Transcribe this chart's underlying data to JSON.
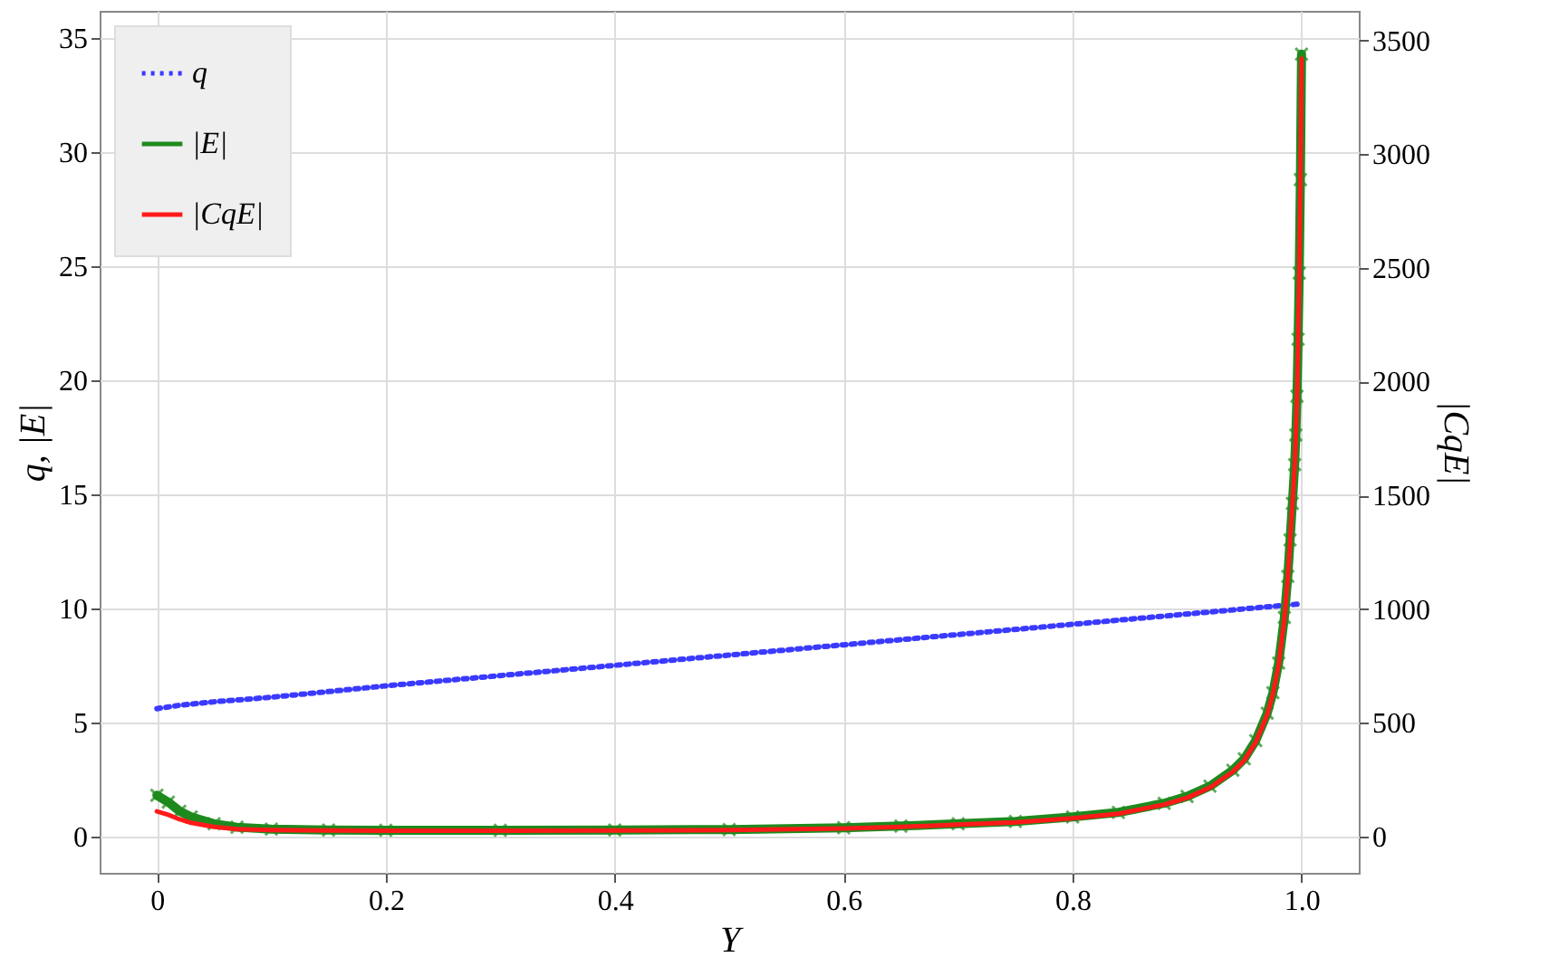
{
  "chart_data": {
    "type": "line",
    "xlabel": "Y",
    "ylabel": "q, |E|",
    "y2label": "|CqE|",
    "xlim": [
      -0.05,
      1.05
    ],
    "xticks": [
      0,
      0.2,
      0.4,
      0.6,
      0.8,
      {
        "value": 1,
        "label": "1.0"
      }
    ],
    "ylim": [
      -1.6,
      36.2
    ],
    "yticks": [
      0,
      5,
      10,
      15,
      20,
      25,
      30,
      35
    ],
    "y2lim": [
      -160,
      3630
    ],
    "y2ticks": [
      0,
      500,
      1000,
      1500,
      2000,
      2500,
      3000,
      3500
    ],
    "grid": true,
    "legend": "top left",
    "series": [
      {
        "name": "q",
        "color": "#3a3aff",
        "line_style": "dotted",
        "marker": "none",
        "x": [
          0,
          0.02,
          0.05,
          0.1,
          0.2,
          0.4,
          0.6,
          0.8,
          1
        ],
        "values": [
          5.6,
          5.75,
          5.9,
          6.1,
          6.6,
          7.5,
          8.4,
          9.3,
          10.2
        ]
      },
      {
        "name": "|E|",
        "color": "#1e8a1e",
        "line_style": "solid",
        "marker": "cross",
        "x": [
          0,
          0.01,
          0.02,
          0.03,
          0.05,
          0.07,
          0.1,
          0.15,
          0.2,
          0.3,
          0.4,
          0.5,
          0.6,
          0.65,
          0.7,
          0.75,
          0.8,
          0.84,
          0.88,
          0.9,
          0.92,
          0.94,
          0.95,
          0.96,
          0.97,
          0.975,
          0.98,
          0.985,
          0.988,
          0.99,
          0.992,
          0.994,
          0.995,
          0.996,
          0.997,
          0.998,
          0.999,
          1.0
        ],
        "values": [
          1.8,
          1.5,
          1.1,
          0.85,
          0.55,
          0.4,
          0.32,
          0.28,
          0.27,
          0.27,
          0.28,
          0.3,
          0.38,
          0.45,
          0.55,
          0.65,
          0.85,
          1.05,
          1.45,
          1.75,
          2.2,
          2.9,
          3.4,
          4.2,
          5.4,
          6.3,
          7.6,
          9.6,
          11.4,
          13.0,
          14.6,
          16.3,
          17.6,
          19.3,
          21.8,
          24.7,
          28.8,
          34.3
        ]
      },
      {
        "name": "|CqE|",
        "color": "#ff1a1a",
        "line_style": "solid",
        "marker": "none",
        "axis": "y2",
        "x": [
          0,
          0.01,
          0.02,
          0.03,
          0.05,
          0.07,
          0.1,
          0.15,
          0.2,
          0.3,
          0.4,
          0.5,
          0.6,
          0.65,
          0.7,
          0.75,
          0.8,
          0.84,
          0.88,
          0.9,
          0.92,
          0.94,
          0.95,
          0.96,
          0.97,
          0.975,
          0.98,
          0.985,
          0.988,
          0.99,
          0.992,
          0.994,
          0.995,
          0.996,
          0.997,
          0.998,
          0.999,
          1.0
        ],
        "values": [
          110,
          95,
          75,
          60,
          42,
          32,
          28,
          26,
          25,
          25,
          26,
          28,
          35,
          42,
          52,
          62,
          80,
          100,
          140,
          170,
          215,
          285,
          335,
          415,
          535,
          625,
          755,
          955,
          1135,
          1295,
          1455,
          1625,
          1755,
          1925,
          2175,
          2465,
          2875,
          3420
        ]
      }
    ]
  }
}
